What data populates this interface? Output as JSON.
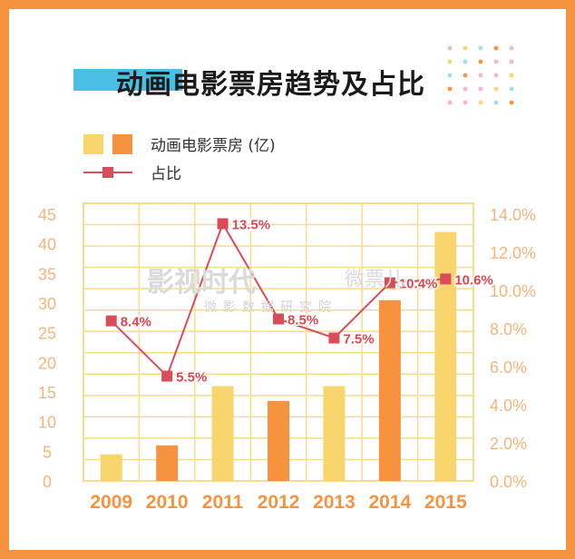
{
  "title": "动画电影票房趋势及占比",
  "legend": {
    "bar_label": "动画电影票房 (亿)",
    "line_label": "占比"
  },
  "watermark": {
    "brand": "影视时代",
    "sub_brand": "微票儿",
    "subtitle": "微影数据研究院"
  },
  "colors": {
    "frame": "#f7933e",
    "bar_light": "#f9d56e",
    "bar_dark": "#f7933e",
    "line": "#d94c5a",
    "grid": "#f8dc8c",
    "axis_text": "#f7b47a",
    "point_label": "#e0444f",
    "title_accent": "#49c0e3"
  },
  "chart_data": {
    "type": "bar",
    "categories": [
      "2009",
      "2010",
      "2011",
      "2012",
      "2013",
      "2014",
      "2015"
    ],
    "series": [
      {
        "name": "动画电影票房 (亿)",
        "type": "bar",
        "axis": "left",
        "values": [
          4.5,
          6,
          16,
          13.5,
          16,
          30.5,
          42
        ]
      },
      {
        "name": "占比",
        "type": "line",
        "axis": "right",
        "values": [
          8.4,
          5.5,
          13.5,
          8.5,
          7.5,
          10.4,
          10.6
        ],
        "labels": [
          "8.4%",
          "5.5%",
          "13.5%",
          "8.5%",
          "7.5%",
          "10.4%",
          "10.6%"
        ]
      }
    ],
    "bar_colors": [
      "light",
      "dark",
      "light",
      "dark",
      "light",
      "dark",
      "light"
    ],
    "ylim_left": [
      0,
      45
    ],
    "yticks_left": [
      "0",
      "5",
      "10",
      "15",
      "20",
      "25",
      "30",
      "35",
      "40",
      "45"
    ],
    "ylim_right": [
      0,
      14
    ],
    "yticks_right": [
      "0.0%",
      "2.0%",
      "4.0%",
      "6.0%",
      "8.0%",
      "10.0%",
      "12.0%",
      "14.0%"
    ],
    "grid": true
  }
}
